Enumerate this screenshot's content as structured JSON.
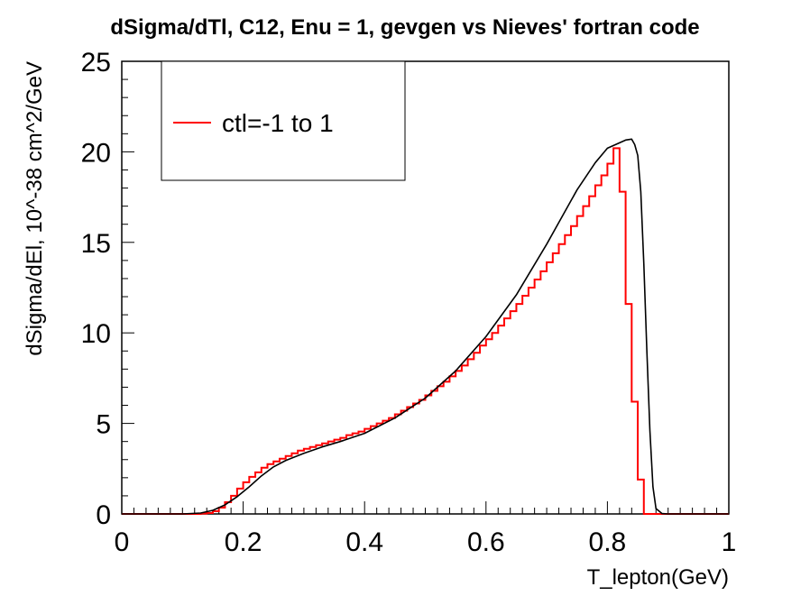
{
  "chart_data": {
    "type": "line",
    "title": "dSigma/dTl, C12, Enu = 1, gevgen vs Nieves' fortran code",
    "xlabel": "T_lepton(GeV)",
    "ylabel": "dSigma/dEl, 10^-38 cm^2/GeV",
    "xlim": [
      0,
      1
    ],
    "ylim": [
      0,
      25
    ],
    "x_ticks": [
      "0",
      "0.2",
      "0.4",
      "0.6",
      "0.8",
      "1"
    ],
    "y_ticks": [
      "0",
      "5",
      "10",
      "15",
      "20",
      "25"
    ],
    "grid": false,
    "legend_position": "top-left",
    "series": [
      {
        "name": "ctl=-1 to 1",
        "style": "histogram",
        "color": "#ff0000",
        "bin_width": 0.01,
        "bin_start": 0.0,
        "values": [
          0,
          0,
          0,
          0,
          0,
          0,
          0,
          0,
          0,
          0,
          0,
          0,
          0,
          0.02,
          0.05,
          0.15,
          0.35,
          0.65,
          1.0,
          1.4,
          1.75,
          2.05,
          2.3,
          2.55,
          2.75,
          2.9,
          3.05,
          3.2,
          3.35,
          3.5,
          3.6,
          3.7,
          3.8,
          3.9,
          4.0,
          4.1,
          4.2,
          4.35,
          4.45,
          4.55,
          4.7,
          4.85,
          5.0,
          5.15,
          5.3,
          5.5,
          5.7,
          5.9,
          6.1,
          6.3,
          6.55,
          6.8,
          7.05,
          7.3,
          7.6,
          7.9,
          8.2,
          8.55,
          8.9,
          9.3,
          9.65,
          10.0,
          10.4,
          10.8,
          11.2,
          11.6,
          12.05,
          12.5,
          12.95,
          13.4,
          13.9,
          14.4,
          14.9,
          15.4,
          15.9,
          16.45,
          17.0,
          17.55,
          18.15,
          18.7,
          19.35,
          20.2,
          17.8,
          11.6,
          6.2,
          1.9,
          0,
          0,
          0,
          0,
          0,
          0,
          0,
          0,
          0,
          0,
          0,
          0,
          0,
          0
        ]
      },
      {
        "name": "",
        "style": "line",
        "color": "#000000",
        "x": [
          0,
          0.1,
          0.13,
          0.15,
          0.17,
          0.19,
          0.21,
          0.23,
          0.25,
          0.27,
          0.3,
          0.33,
          0.36,
          0.4,
          0.45,
          0.5,
          0.55,
          0.6,
          0.65,
          0.7,
          0.75,
          0.78,
          0.8,
          0.82,
          0.83,
          0.84,
          0.845,
          0.85,
          0.855,
          0.86,
          0.865,
          0.87,
          0.875,
          0.88,
          0.89,
          0.9,
          1.0
        ],
        "y": [
          0,
          0,
          0.05,
          0.2,
          0.5,
          0.95,
          1.5,
          2.1,
          2.6,
          2.95,
          3.35,
          3.7,
          4.0,
          4.45,
          5.3,
          6.4,
          7.9,
          9.8,
          12.1,
          14.9,
          17.9,
          19.4,
          20.2,
          20.5,
          20.65,
          20.7,
          20.4,
          19.8,
          17.8,
          13.8,
          9.0,
          4.6,
          1.5,
          0.3,
          0.02,
          0,
          0
        ]
      }
    ]
  }
}
